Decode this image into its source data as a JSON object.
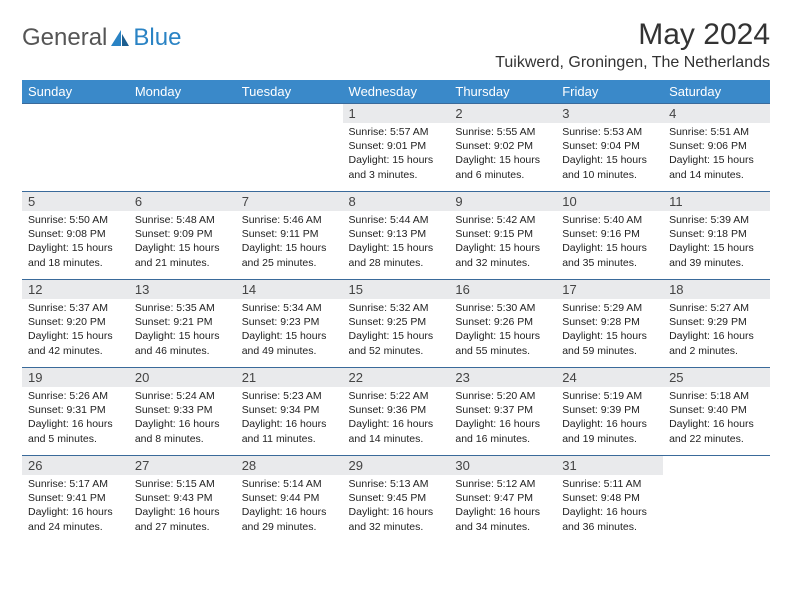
{
  "brand": {
    "part1": "General",
    "part2": "Blue"
  },
  "header": {
    "month_title": "May 2024",
    "location": "Tuikwerd, Groningen, The Netherlands"
  },
  "colors": {
    "header_bg": "#3a89c9",
    "header_text": "#ffffff",
    "daynum_bg": "#e9eaec",
    "row_border": "#3a6a9a",
    "brand_gray": "#555555",
    "brand_blue": "#2a83c4"
  },
  "weekdays": [
    "Sunday",
    "Monday",
    "Tuesday",
    "Wednesday",
    "Thursday",
    "Friday",
    "Saturday"
  ],
  "weeks": [
    [
      null,
      null,
      null,
      {
        "n": "1",
        "sr": "5:57 AM",
        "ss": "9:01 PM",
        "dl": "15 hours and 3 minutes."
      },
      {
        "n": "2",
        "sr": "5:55 AM",
        "ss": "9:02 PM",
        "dl": "15 hours and 6 minutes."
      },
      {
        "n": "3",
        "sr": "5:53 AM",
        "ss": "9:04 PM",
        "dl": "15 hours and 10 minutes."
      },
      {
        "n": "4",
        "sr": "5:51 AM",
        "ss": "9:06 PM",
        "dl": "15 hours and 14 minutes."
      }
    ],
    [
      {
        "n": "5",
        "sr": "5:50 AM",
        "ss": "9:08 PM",
        "dl": "15 hours and 18 minutes."
      },
      {
        "n": "6",
        "sr": "5:48 AM",
        "ss": "9:09 PM",
        "dl": "15 hours and 21 minutes."
      },
      {
        "n": "7",
        "sr": "5:46 AM",
        "ss": "9:11 PM",
        "dl": "15 hours and 25 minutes."
      },
      {
        "n": "8",
        "sr": "5:44 AM",
        "ss": "9:13 PM",
        "dl": "15 hours and 28 minutes."
      },
      {
        "n": "9",
        "sr": "5:42 AM",
        "ss": "9:15 PM",
        "dl": "15 hours and 32 minutes."
      },
      {
        "n": "10",
        "sr": "5:40 AM",
        "ss": "9:16 PM",
        "dl": "15 hours and 35 minutes."
      },
      {
        "n": "11",
        "sr": "5:39 AM",
        "ss": "9:18 PM",
        "dl": "15 hours and 39 minutes."
      }
    ],
    [
      {
        "n": "12",
        "sr": "5:37 AM",
        "ss": "9:20 PM",
        "dl": "15 hours and 42 minutes."
      },
      {
        "n": "13",
        "sr": "5:35 AM",
        "ss": "9:21 PM",
        "dl": "15 hours and 46 minutes."
      },
      {
        "n": "14",
        "sr": "5:34 AM",
        "ss": "9:23 PM",
        "dl": "15 hours and 49 minutes."
      },
      {
        "n": "15",
        "sr": "5:32 AM",
        "ss": "9:25 PM",
        "dl": "15 hours and 52 minutes."
      },
      {
        "n": "16",
        "sr": "5:30 AM",
        "ss": "9:26 PM",
        "dl": "15 hours and 55 minutes."
      },
      {
        "n": "17",
        "sr": "5:29 AM",
        "ss": "9:28 PM",
        "dl": "15 hours and 59 minutes."
      },
      {
        "n": "18",
        "sr": "5:27 AM",
        "ss": "9:29 PM",
        "dl": "16 hours and 2 minutes."
      }
    ],
    [
      {
        "n": "19",
        "sr": "5:26 AM",
        "ss": "9:31 PM",
        "dl": "16 hours and 5 minutes."
      },
      {
        "n": "20",
        "sr": "5:24 AM",
        "ss": "9:33 PM",
        "dl": "16 hours and 8 minutes."
      },
      {
        "n": "21",
        "sr": "5:23 AM",
        "ss": "9:34 PM",
        "dl": "16 hours and 11 minutes."
      },
      {
        "n": "22",
        "sr": "5:22 AM",
        "ss": "9:36 PM",
        "dl": "16 hours and 14 minutes."
      },
      {
        "n": "23",
        "sr": "5:20 AM",
        "ss": "9:37 PM",
        "dl": "16 hours and 16 minutes."
      },
      {
        "n": "24",
        "sr": "5:19 AM",
        "ss": "9:39 PM",
        "dl": "16 hours and 19 minutes."
      },
      {
        "n": "25",
        "sr": "5:18 AM",
        "ss": "9:40 PM",
        "dl": "16 hours and 22 minutes."
      }
    ],
    [
      {
        "n": "26",
        "sr": "5:17 AM",
        "ss": "9:41 PM",
        "dl": "16 hours and 24 minutes."
      },
      {
        "n": "27",
        "sr": "5:15 AM",
        "ss": "9:43 PM",
        "dl": "16 hours and 27 minutes."
      },
      {
        "n": "28",
        "sr": "5:14 AM",
        "ss": "9:44 PM",
        "dl": "16 hours and 29 minutes."
      },
      {
        "n": "29",
        "sr": "5:13 AM",
        "ss": "9:45 PM",
        "dl": "16 hours and 32 minutes."
      },
      {
        "n": "30",
        "sr": "5:12 AM",
        "ss": "9:47 PM",
        "dl": "16 hours and 34 minutes."
      },
      {
        "n": "31",
        "sr": "5:11 AM",
        "ss": "9:48 PM",
        "dl": "16 hours and 36 minutes."
      },
      null
    ]
  ],
  "labels": {
    "sunrise": "Sunrise:",
    "sunset": "Sunset:",
    "daylight": "Daylight:"
  }
}
